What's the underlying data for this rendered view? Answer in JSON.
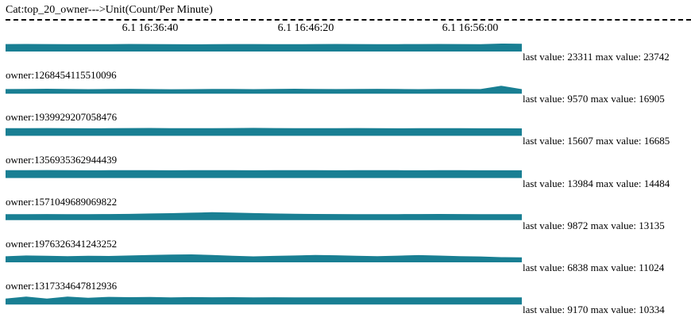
{
  "title": "Cat:top_20_owner--->Unit(Count/Per Minute)",
  "time_ticks": [
    "6.1 16:36:40",
    "6.1 16:46:20",
    "6.1 16:56:00"
  ],
  "fill_color": "#197f93",
  "stats_labels": {
    "last": "last value:",
    "max": "max value:"
  },
  "chart_data": {
    "type": "area",
    "title": "Cat:top_20_owner--->Unit(Count/Per Minute)",
    "x_ticks": [
      "6.1 16:36:40",
      "6.1 16:46:20",
      "6.1 16:56:00"
    ],
    "series": [
      {
        "label": "",
        "last_value": "23311",
        "max_value": "23742",
        "values": [
          22400,
          22600,
          22300,
          22000,
          21800,
          22100,
          22500,
          22300,
          22000,
          21700,
          21900,
          22200,
          22400,
          22100,
          21900,
          22200,
          22500,
          22300,
          22100,
          22000,
          22300,
          22500,
          22200,
          22000,
          23742,
          23311
        ]
      },
      {
        "label": "owner:1268454115510096",
        "last_value": "9570",
        "max_value": "16905",
        "values": [
          9800,
          10100,
          10500,
          10000,
          9600,
          9900,
          10300,
          9800,
          9500,
          9700,
          10200,
          9900,
          9600,
          10000,
          10400,
          10100,
          9800,
          10000,
          10300,
          9900,
          9700,
          10000,
          10200,
          9800,
          16905,
          9570
        ]
      },
      {
        "label": "owner:1939929207058476",
        "last_value": "15607",
        "max_value": "16685",
        "values": [
          16000,
          16200,
          16400,
          16100,
          15900,
          16100,
          16300,
          16500,
          16200,
          16000,
          16100,
          16300,
          16685,
          16400,
          16100,
          16000,
          16200,
          16300,
          16100,
          15900,
          16000,
          16200,
          16100,
          15900,
          15800,
          15607
        ]
      },
      {
        "label": "owner:1356935362944439",
        "last_value": "13984",
        "max_value": "14484",
        "values": [
          14200,
          14300,
          14484,
          14300,
          14100,
          14200,
          14300,
          14200,
          14100,
          14200,
          14300,
          14200,
          14100,
          14200,
          14300,
          14200,
          14100,
          14200,
          14250,
          14150,
          14100,
          14200,
          14150,
          14050,
          14000,
          13984
        ]
      },
      {
        "label": "owner:1571049689069822",
        "last_value": "9872",
        "max_value": "13135",
        "values": [
          9900,
          10000,
          10100,
          9950,
          9900,
          10050,
          10400,
          11000,
          11600,
          12400,
          13135,
          12500,
          11700,
          11000,
          10500,
          10200,
          10100,
          10000,
          9950,
          10000,
          10100,
          10300,
          10100,
          9950,
          9900,
          9872
        ]
      },
      {
        "label": "owner:1976326341243252",
        "last_value": "6838",
        "max_value": "11024",
        "values": [
          8400,
          9500,
          9000,
          8600,
          9200,
          8800,
          9500,
          10200,
          10800,
          11024,
          10200,
          9000,
          8300,
          8900,
          9500,
          10100,
          9800,
          9100,
          8500,
          9300,
          10000,
          9400,
          8600,
          8200,
          7200,
          6838
        ]
      },
      {
        "label": "owner:1317334647812936",
        "last_value": "9170",
        "max_value": "10334",
        "values": [
          7800,
          10334,
          7600,
          10200,
          8800,
          9900,
          9500,
          9700,
          9300,
          9600,
          9400,
          9500,
          9300,
          9400,
          9200,
          9350,
          9300,
          9250,
          9200,
          9150,
          9300,
          9250,
          9200,
          9180,
          9175,
          9170
        ]
      }
    ]
  }
}
